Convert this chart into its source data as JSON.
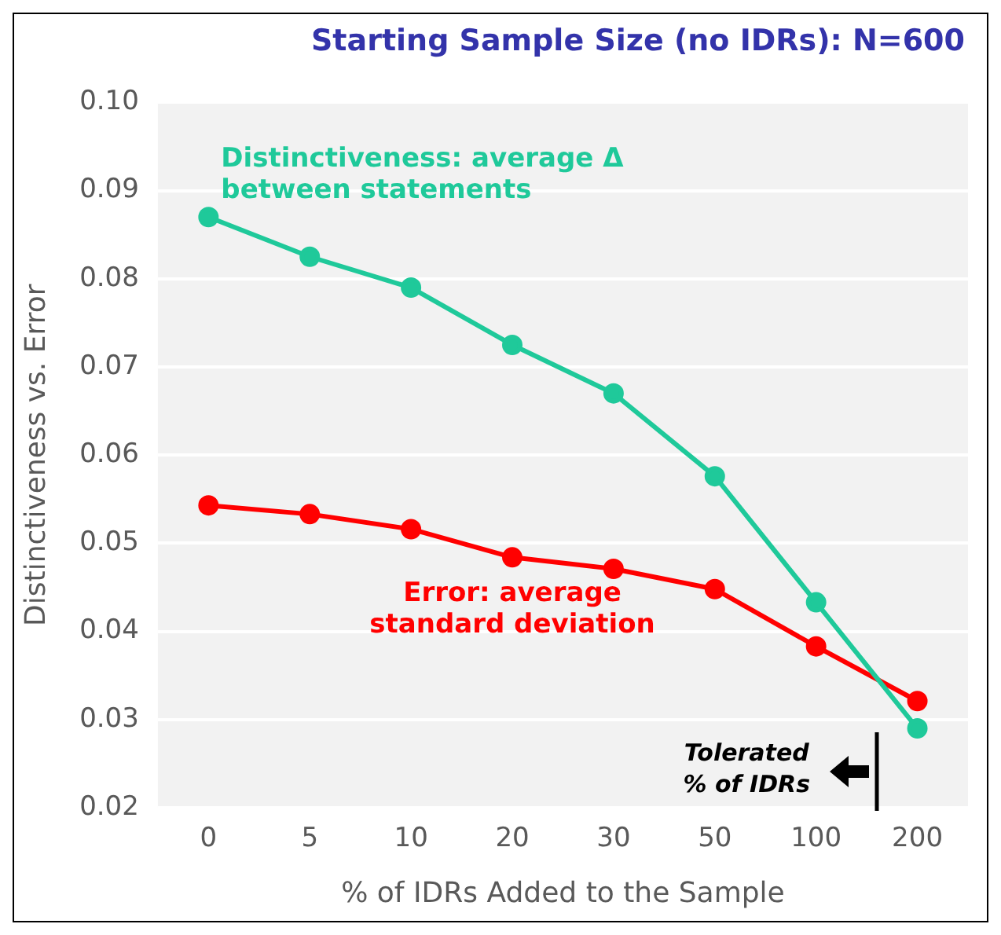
{
  "chart_data": {
    "type": "line",
    "title": "Starting Sample Size (no IDRs): N=600",
    "xlabel": "% of IDRs Added to the Sample",
    "ylabel": "Distinctiveness vs. Error",
    "categories": [
      "0",
      "5",
      "10",
      "20",
      "30",
      "50",
      "100",
      "200"
    ],
    "series": [
      {
        "name": "Distinctiveness: average Δ between statements",
        "color": "#1fc99a",
        "values": [
          0.087,
          0.0825,
          0.079,
          0.0725,
          0.067,
          0.0576,
          0.0433,
          0.029
        ]
      },
      {
        "name": "Error: average standard deviation",
        "color": "#ff0000",
        "values": [
          0.0543,
          0.0533,
          0.0516,
          0.0484,
          0.0471,
          0.0448,
          0.0383,
          0.0321
        ]
      }
    ],
    "ylim": [
      0.02,
      0.1
    ],
    "yticks": [
      0.02,
      0.03,
      0.04,
      0.05,
      0.06,
      0.07,
      0.08,
      0.09,
      {
        "value": 0.1,
        "label": "0.10"
      }
    ],
    "grid": "y",
    "marker": "circle",
    "line_style": "solid",
    "legend": false,
    "annotations": [
      "Tolerated\n% of IDRs"
    ]
  }
}
